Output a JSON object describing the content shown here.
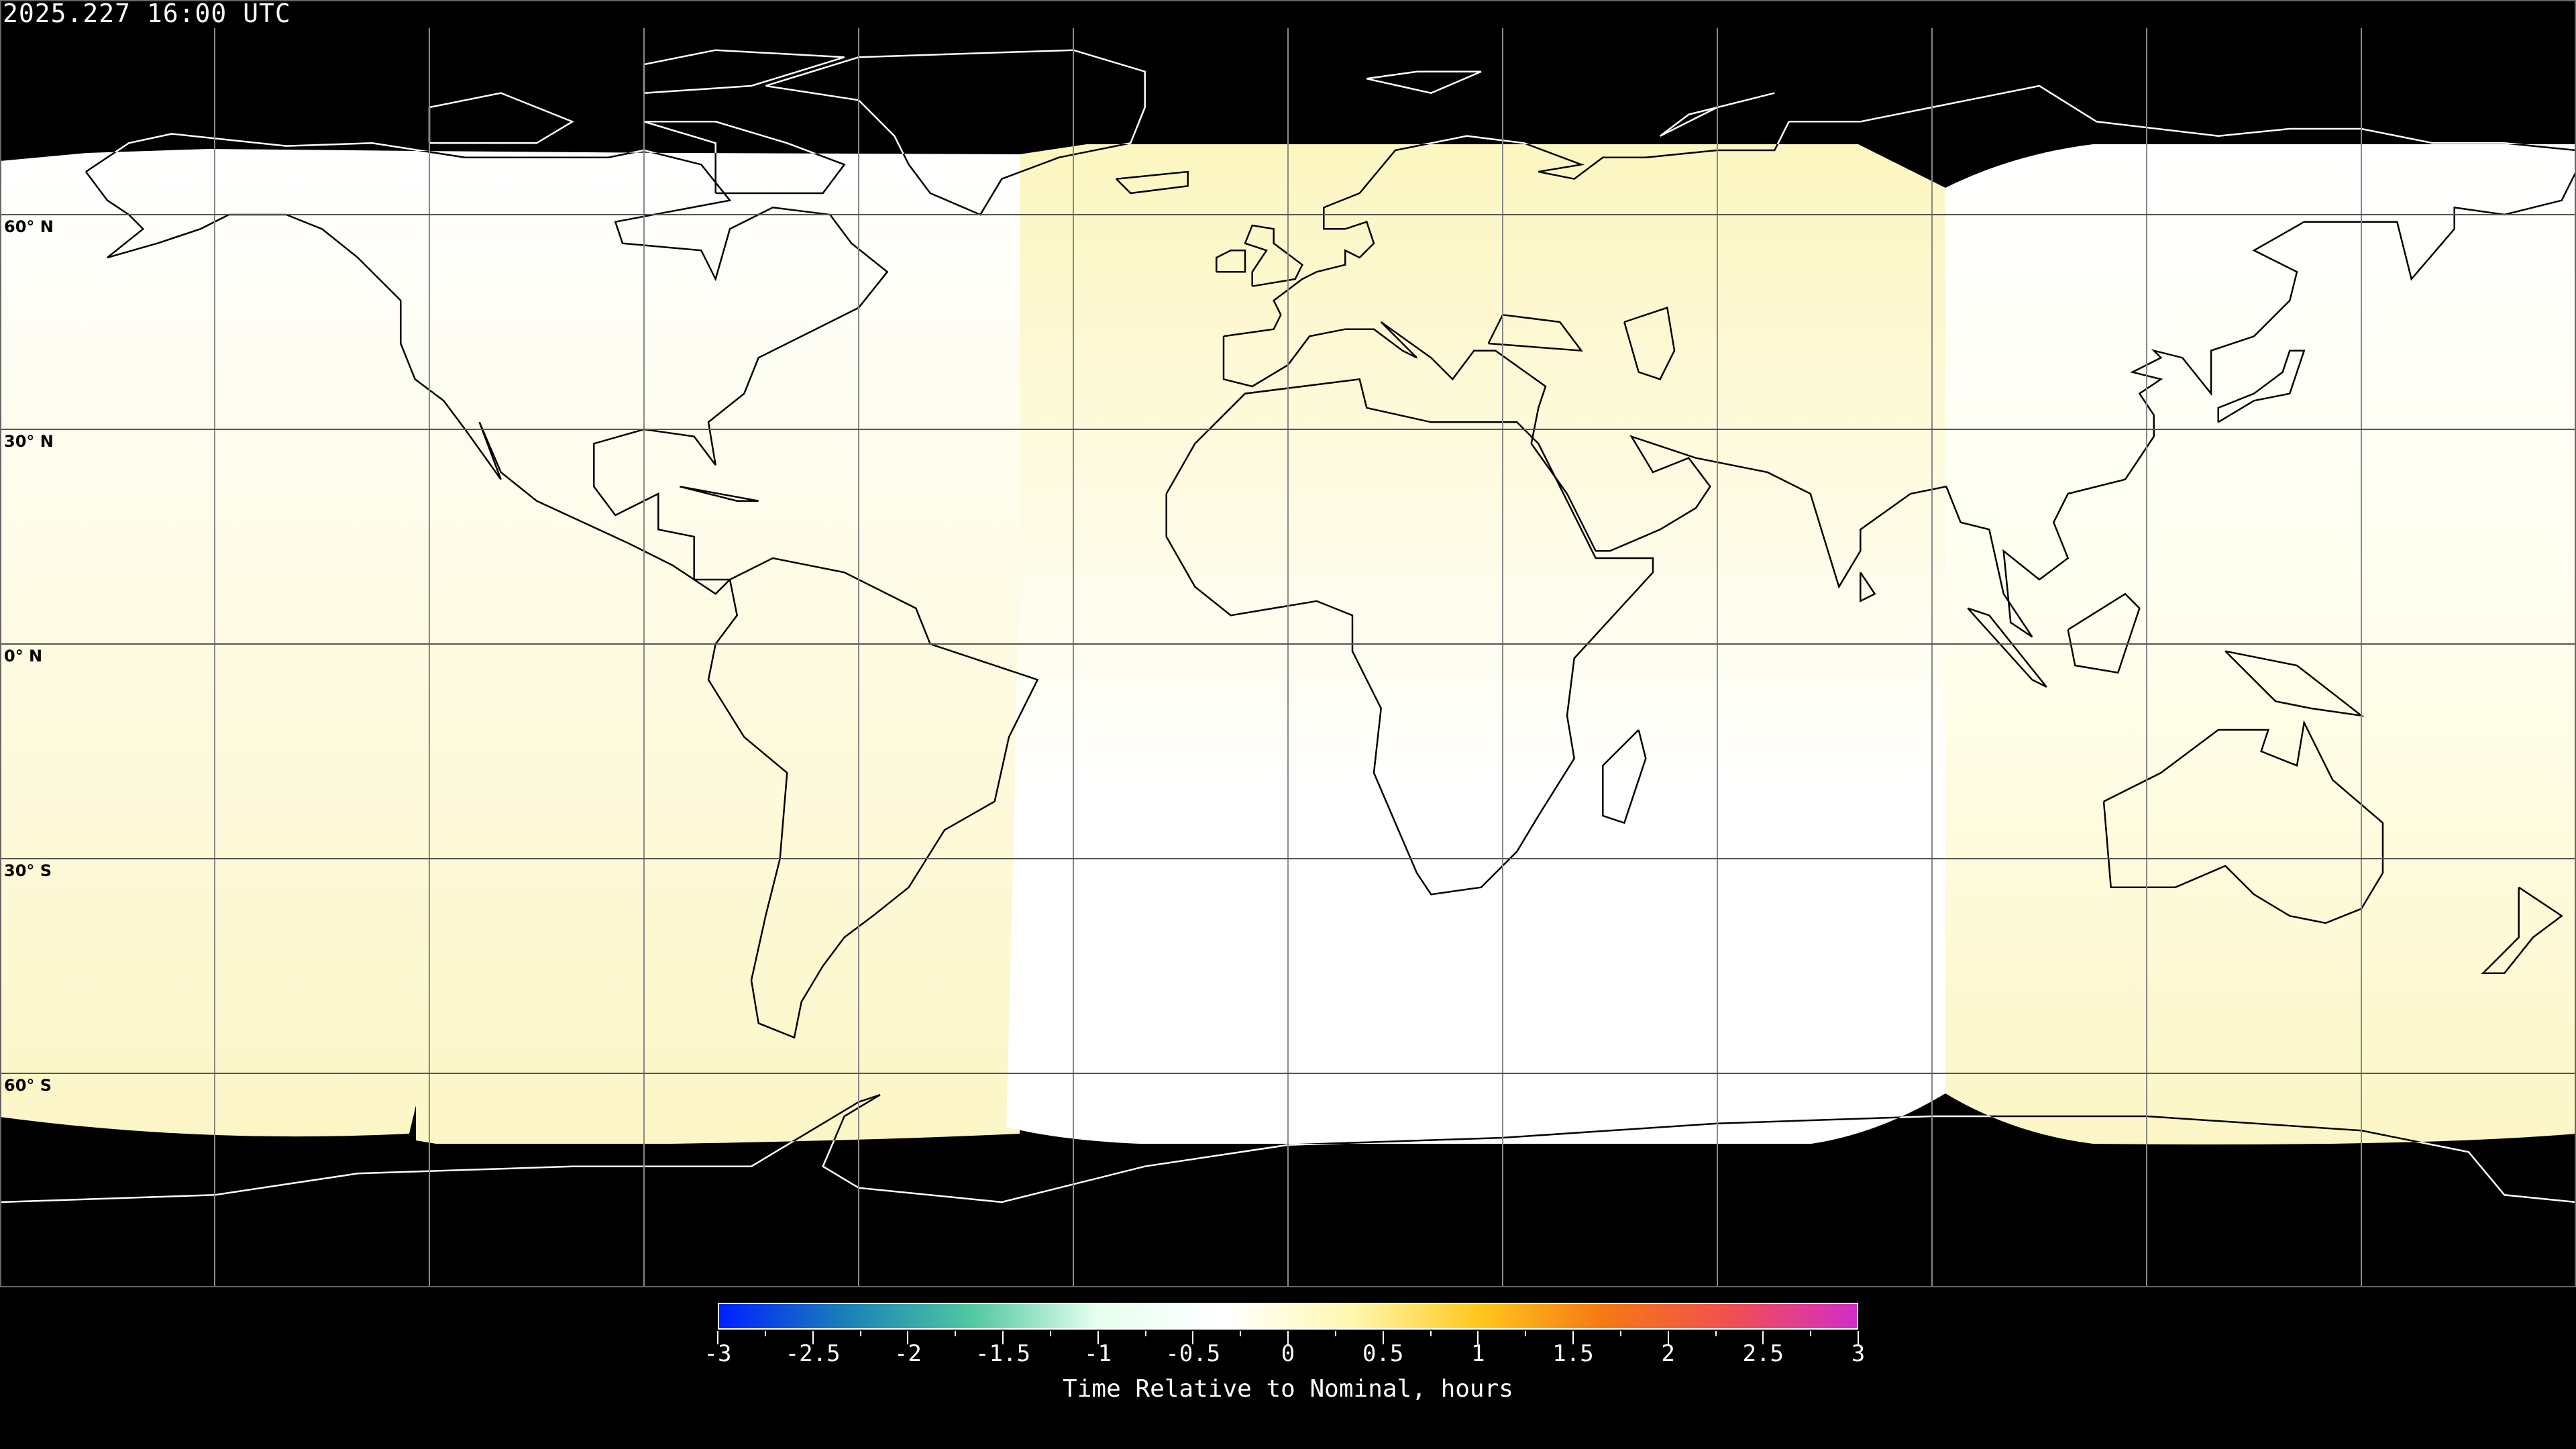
{
  "title": "2025.227 16:00 UTC",
  "latitude_labels": [
    "60° N",
    "30° N",
    "0° N",
    "30° S",
    "60° S"
  ],
  "latitude_values": [
    60,
    30,
    0,
    -30,
    -60
  ],
  "longitude_gridlines": [
    -150,
    -120,
    -90,
    -60,
    -30,
    0,
    30,
    60,
    90,
    120,
    150
  ],
  "colorbar": {
    "label": "Time Relative to Nominal, hours",
    "range": [
      -3,
      3
    ],
    "tick_labels": [
      "-3",
      "-2.5",
      "-2",
      "-1.5",
      "-1",
      "-0.5",
      "0",
      "0.5",
      "1",
      "1.5",
      "2",
      "2.5",
      "3"
    ],
    "colors": [
      "#0020ff",
      "#1a80b8",
      "#50c8a0",
      "#e6fff0",
      "#ffffff",
      "#fff8b0",
      "#ffc81e",
      "#f57814",
      "#f05050",
      "#d22dc8"
    ]
  },
  "region_colors": {
    "pale_yellow": "#fcf6c2",
    "white": "#ffffff",
    "background": "#000000"
  }
}
